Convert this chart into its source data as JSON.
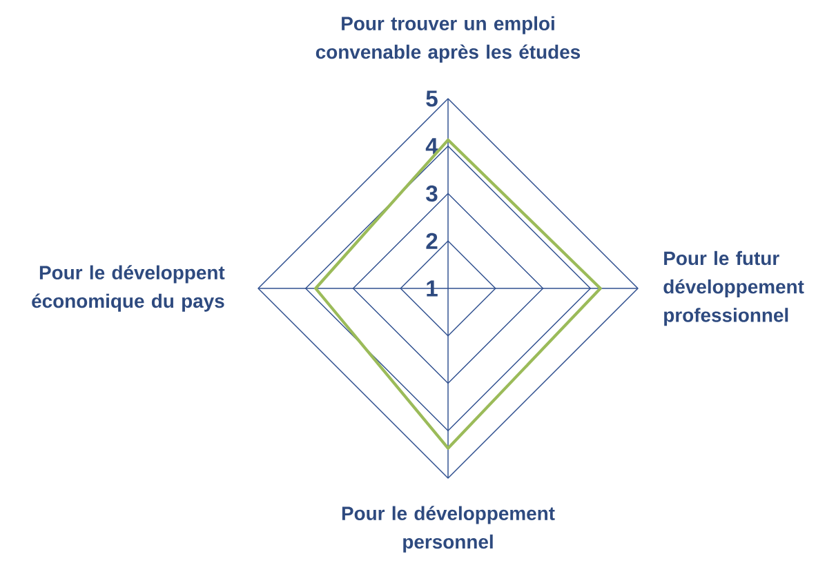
{
  "chart_data": {
    "type": "radar",
    "categories": [
      "Pour trouver un emploi convenable après les études",
      "Pour le futur développement professionnel",
      "Pour le développement personnel",
      "Pour le développent économique du pays"
    ],
    "series": [
      {
        "color": "#9bbb59",
        "values": [
          4.13,
          4.21,
          4.37,
          3.79
        ]
      }
    ],
    "ylim": [
      1,
      5
    ],
    "yticks": [
      1,
      2,
      3,
      4,
      5
    ],
    "grid": true
  }
}
